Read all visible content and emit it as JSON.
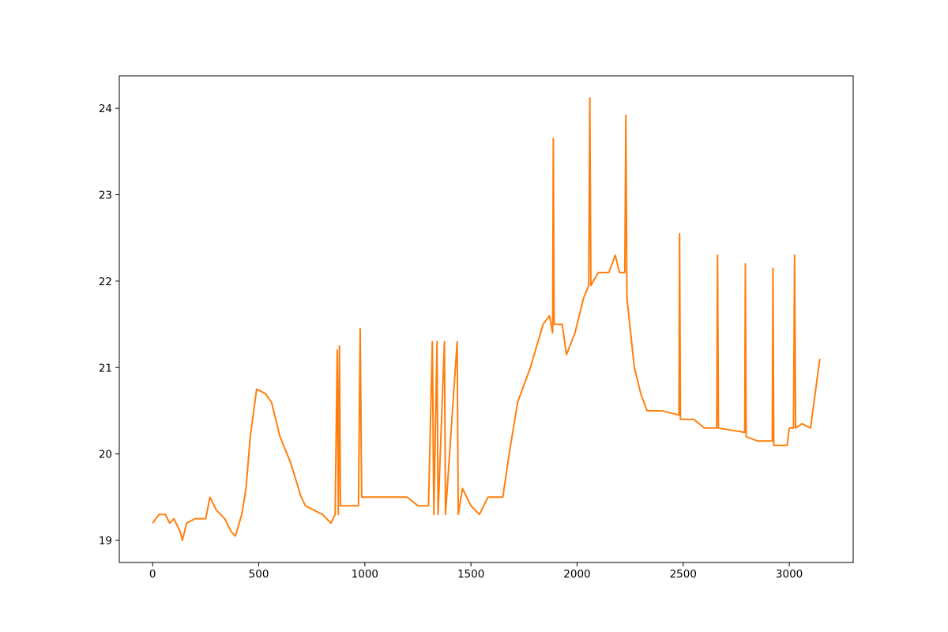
{
  "chart_data": {
    "type": "line",
    "color": "#ff7f0e",
    "x": [
      0,
      30,
      60,
      80,
      100,
      130,
      140,
      160,
      200,
      250,
      270,
      300,
      340,
      370,
      390,
      420,
      440,
      460,
      490,
      530,
      560,
      600,
      650,
      700,
      720,
      800,
      840,
      860,
      870,
      875,
      880,
      885,
      970,
      978,
      985,
      1100,
      1200,
      1250,
      1300,
      1318,
      1325,
      1340,
      1345,
      1375,
      1380,
      1435,
      1440,
      1460,
      1500,
      1540,
      1580,
      1650,
      1680,
      1720,
      1780,
      1840,
      1870,
      1885,
      1888,
      1892,
      1930,
      1950,
      1990,
      2030,
      2055,
      2060,
      2065,
      2100,
      2150,
      2180,
      2200,
      2225,
      2230,
      2235,
      2270,
      2300,
      2330,
      2400,
      2480,
      2483,
      2487,
      2550,
      2600,
      2658,
      2662,
      2666,
      2790,
      2793,
      2797,
      2850,
      2920,
      2923,
      2927,
      2990,
      3000,
      3020,
      3025,
      3030,
      3060,
      3100,
      3144
    ],
    "values": [
      19.2,
      19.3,
      19.3,
      19.2,
      19.25,
      19.1,
      19.0,
      19.2,
      19.25,
      19.25,
      19.5,
      19.35,
      19.25,
      19.1,
      19.05,
      19.3,
      19.6,
      20.2,
      20.75,
      20.7,
      20.6,
      20.2,
      19.9,
      19.5,
      19.4,
      19.3,
      19.2,
      19.3,
      21.2,
      19.3,
      21.25,
      19.4,
      19.4,
      21.45,
      19.5,
      19.5,
      19.5,
      19.4,
      19.4,
      21.3,
      19.3,
      21.3,
      19.3,
      21.3,
      19.3,
      21.3,
      19.3,
      19.6,
      19.4,
      19.3,
      19.5,
      19.5,
      20.0,
      20.6,
      21.0,
      21.5,
      21.6,
      21.4,
      23.65,
      21.5,
      21.5,
      21.15,
      21.4,
      21.8,
      21.95,
      24.12,
      21.95,
      22.1,
      22.1,
      22.3,
      22.1,
      22.1,
      23.92,
      21.8,
      21.0,
      20.7,
      20.5,
      20.5,
      20.45,
      22.55,
      20.4,
      20.4,
      20.3,
      20.3,
      22.3,
      20.3,
      20.25,
      22.2,
      20.2,
      20.15,
      20.15,
      22.15,
      20.1,
      20.1,
      20.3,
      20.3,
      22.3,
      20.3,
      20.35,
      20.3,
      21.1
    ],
    "xlim": [
      -157.2,
      3301.2
    ],
    "ylim": [
      18.744,
      24.376
    ],
    "xticks": [
      0,
      500,
      1000,
      1500,
      2000,
      2500,
      3000
    ],
    "yticks": [
      19,
      20,
      21,
      22,
      23,
      24
    ],
    "grid": false
  }
}
